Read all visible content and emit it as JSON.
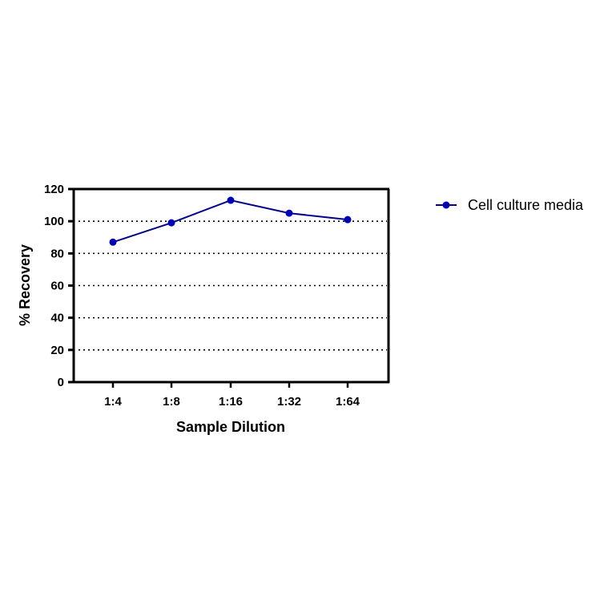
{
  "chart_data": {
    "type": "line",
    "title": "",
    "xlabel": "Sample Dilution",
    "ylabel": "% Recovery",
    "categories": [
      "1:4",
      "1:8",
      "1:16",
      "1:32",
      "1:64"
    ],
    "ylim": [
      0,
      120
    ],
    "yticks": [
      0,
      20,
      40,
      60,
      80,
      100,
      120
    ],
    "grid": "horizontal dotted",
    "legend_position": "right",
    "series": [
      {
        "name": "Cell culture media",
        "values": [
          87,
          99,
          113,
          105,
          101
        ],
        "color": "#00008B"
      }
    ]
  }
}
